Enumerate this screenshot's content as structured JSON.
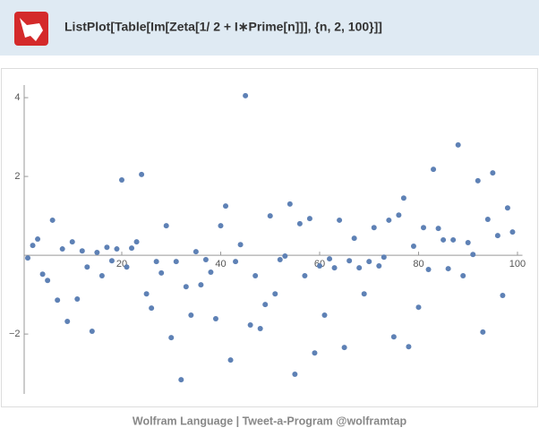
{
  "header": {
    "title": "ListPlot[Table[Im[Zeta[1/ 2 + I∗Prime[n]]], {n, 2, 100}]]"
  },
  "footer": {
    "text": "Wolfram Language | Tweet-a-Program    @wolframtap"
  },
  "chart_data": {
    "type": "scatter",
    "color": "#5e81b5",
    "x": [
      1,
      2,
      3,
      4,
      5,
      6,
      7,
      8,
      9,
      10,
      11,
      12,
      13,
      14,
      15,
      16,
      17,
      18,
      19,
      20,
      21,
      22,
      23,
      24,
      25,
      26,
      27,
      28,
      29,
      30,
      31,
      32,
      33,
      34,
      35,
      36,
      37,
      38,
      39,
      40,
      41,
      42,
      43,
      44,
      45,
      46,
      47,
      48,
      49,
      50,
      51,
      52,
      53,
      54,
      55,
      56,
      57,
      58,
      59,
      60,
      61,
      62,
      63,
      64,
      65,
      66,
      67,
      68,
      69,
      70,
      71,
      72,
      73,
      74,
      75,
      76,
      77,
      78,
      79,
      80,
      81,
      82,
      83,
      84,
      85,
      86,
      87,
      88,
      89,
      90,
      91,
      92,
      93,
      94,
      95,
      96,
      97,
      98,
      99
    ],
    "values": [
      -0.07,
      0.25,
      0.41,
      -0.48,
      -0.64,
      0.89,
      -1.14,
      0.16,
      -1.68,
      0.34,
      -1.11,
      0.11,
      -0.3,
      -1.93,
      0.07,
      -0.52,
      0.2,
      -0.14,
      0.16,
      1.91,
      -0.3,
      0.18,
      0.34,
      2.05,
      -0.98,
      -1.34,
      -0.16,
      -0.45,
      0.75,
      -2.09,
      -0.16,
      -3.16,
      -0.8,
      -1.52,
      0.09,
      -0.75,
      -0.11,
      -0.43,
      -1.61,
      0.75,
      1.25,
      -2.66,
      -0.16,
      0.27,
      4.05,
      -1.77,
      -0.52,
      -1.86,
      -1.25,
      1.0,
      -0.98,
      -0.11,
      -0.02,
      1.3,
      -3.02,
      0.8,
      -0.52,
      0.93,
      -2.48,
      -0.27,
      -1.52,
      -0.09,
      -0.32,
      0.89,
      -2.34,
      -0.14,
      0.43,
      -0.32,
      -0.98,
      -0.16,
      0.7,
      -0.27,
      -0.05,
      0.89,
      -2.07,
      1.02,
      1.45,
      -2.32,
      0.23,
      -1.32,
      0.7,
      -0.36,
      2.18,
      0.68,
      0.39,
      -0.34,
      0.39,
      2.8,
      -0.52,
      0.32,
      0.02,
      1.89,
      -1.95,
      0.91,
      2.09,
      0.5,
      -1.02,
      1.2,
      0.59
    ],
    "xlim": [
      0,
      101
    ],
    "ylim": [
      -3.52,
      4.32
    ],
    "xticks": [
      20,
      40,
      60,
      80,
      100
    ],
    "yticks": [
      {
        "value": -2,
        "label": "−2"
      },
      2,
      4
    ]
  }
}
